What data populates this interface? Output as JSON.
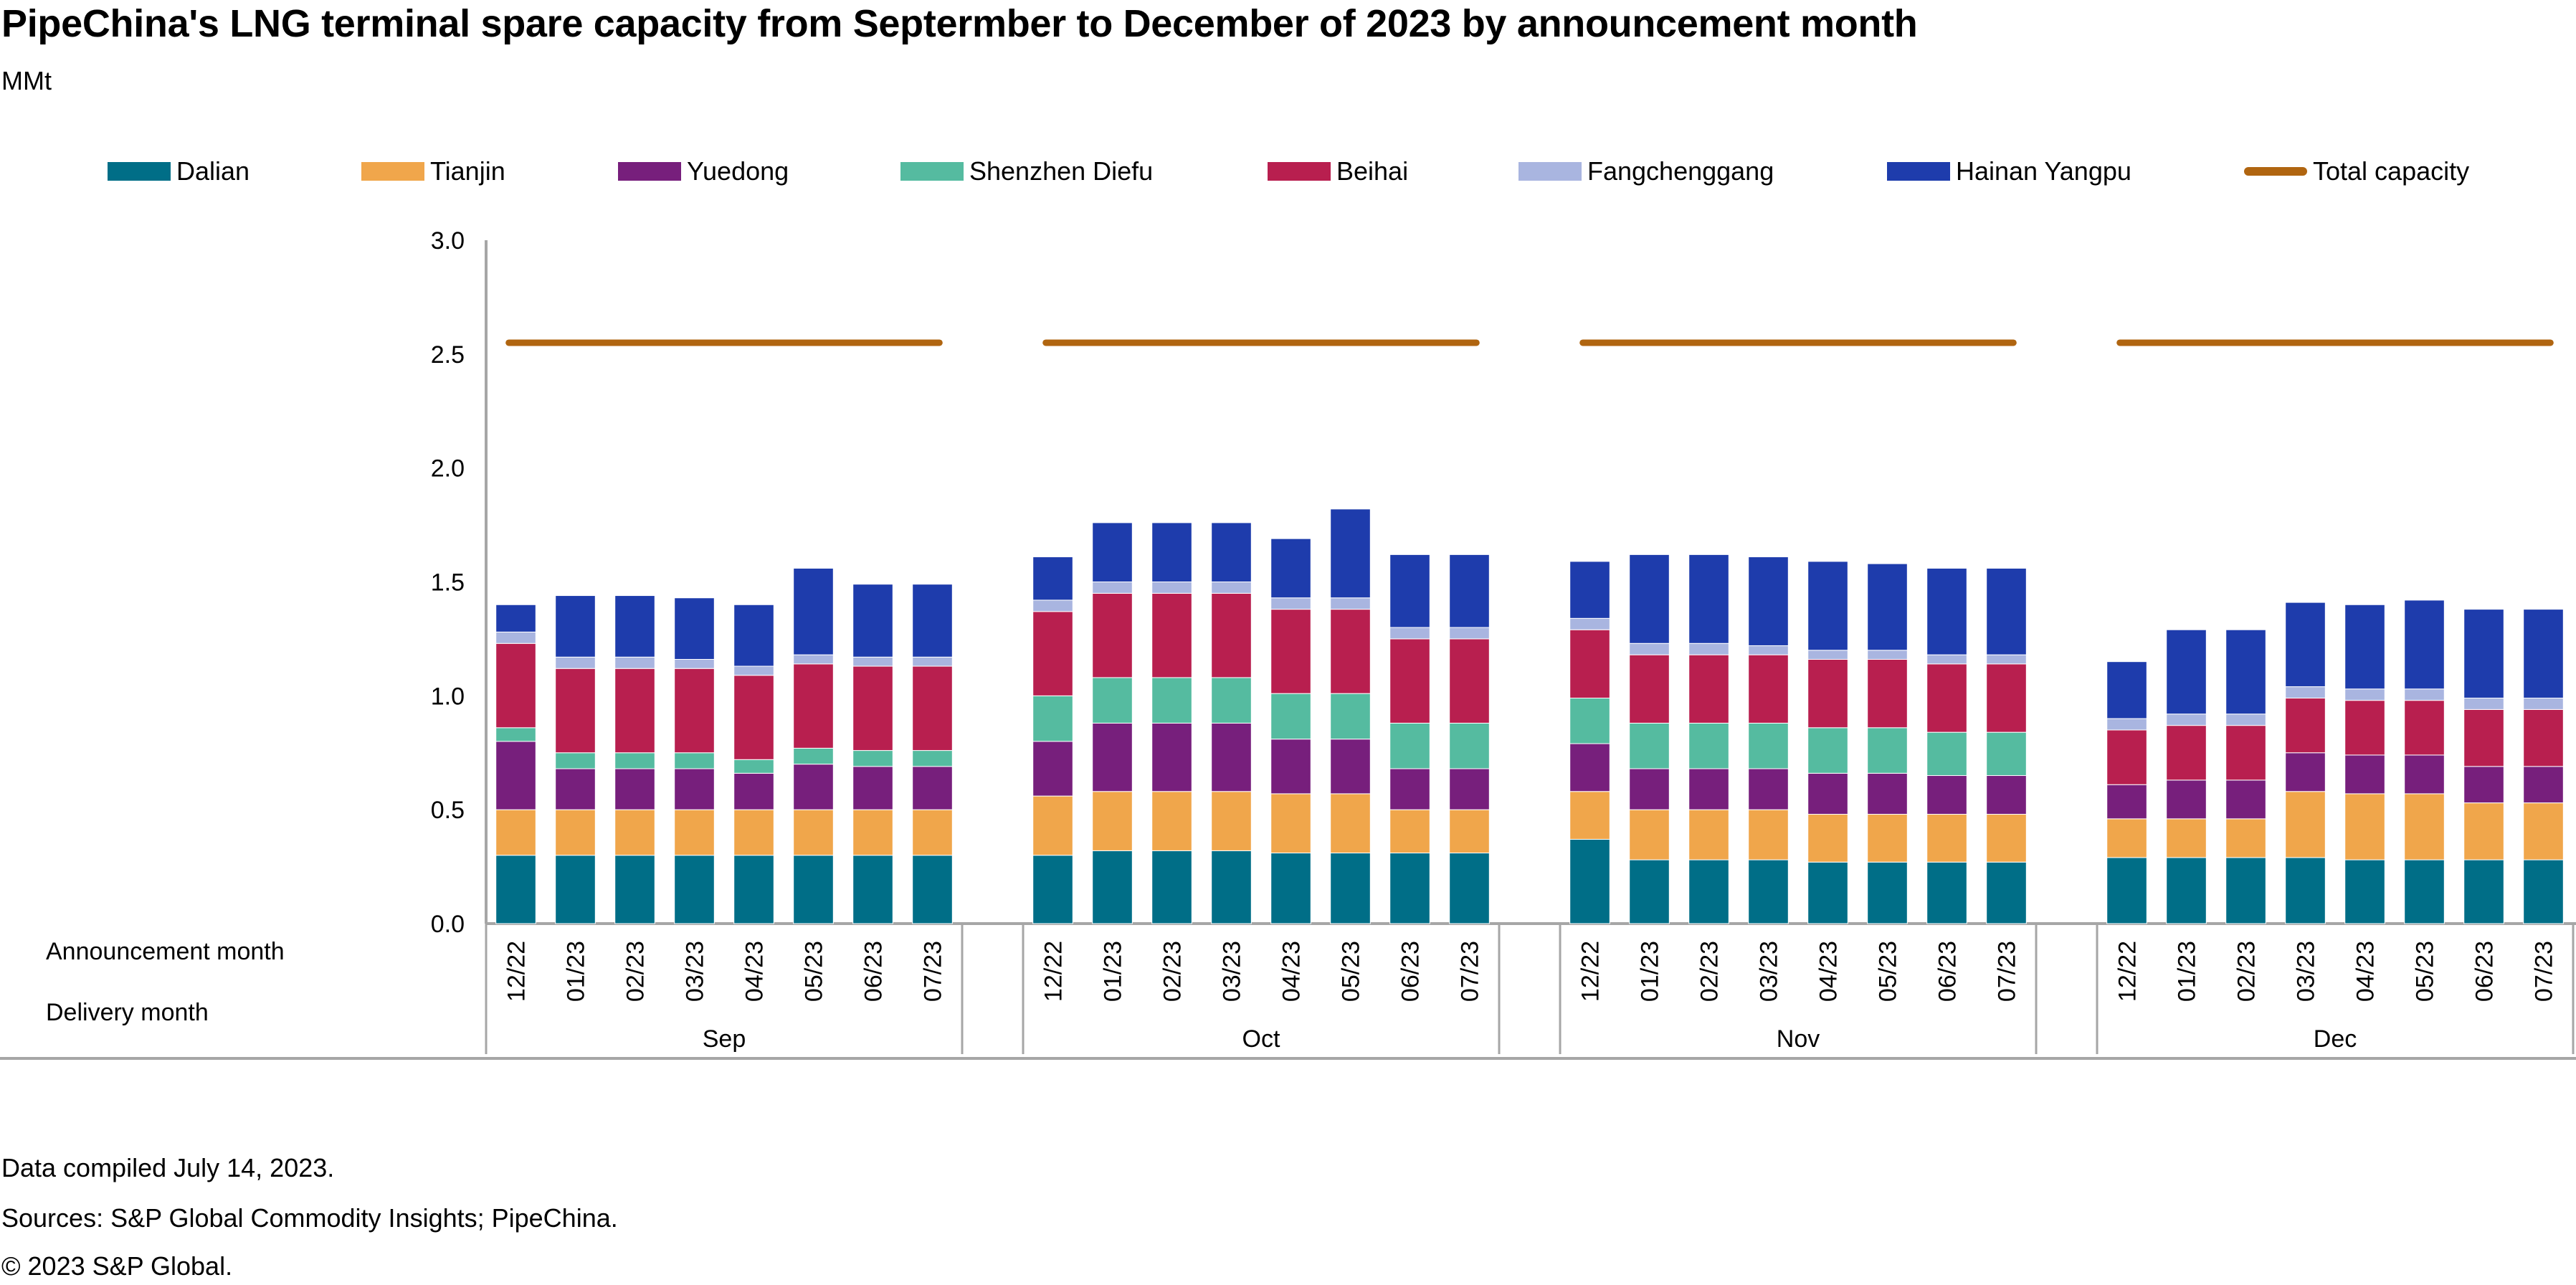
{
  "title": "PipeChina's LNG terminal spare capacity from Septermber to December of 2023 by announcement month",
  "unit": "MMt",
  "row_labels": {
    "announcement": "Announcement month",
    "delivery": "Delivery month"
  },
  "footer": {
    "compiled": "Data compiled July 14, 2023.",
    "sources": "Sources: S&P Global Commodity Insights; PipeChina.",
    "copyright": "© 2023 S&P Global."
  },
  "chart_data": {
    "type": "bar",
    "stacked": true,
    "title": "PipeChina's LNG terminal spare capacity from Septermber to December of 2023 by announcement month",
    "ylabel": "MMt",
    "xlabel": "",
    "ylim": [
      0,
      3.0
    ],
    "yticks": [
      "0.0",
      "0.5",
      "1.0",
      "1.5",
      "2.0",
      "2.5",
      "3.0"
    ],
    "grid": false,
    "legend_position": "top",
    "x_level1_label": "Announcement month",
    "x_level2_label": "Delivery month",
    "groups": [
      "Sep",
      "Oct",
      "Nov",
      "Dec"
    ],
    "categories": [
      "12/22",
      "01/23",
      "02/23",
      "03/23",
      "04/23",
      "05/23",
      "06/23",
      "07/23"
    ],
    "series": [
      {
        "name": "Dalian",
        "color": "#006E87",
        "values": [
          [
            0.3,
            0.3,
            0.3,
            0.3,
            0.3,
            0.3,
            0.3,
            0.3
          ],
          [
            0.3,
            0.32,
            0.32,
            0.32,
            0.31,
            0.31,
            0.31,
            0.31
          ],
          [
            0.37,
            0.28,
            0.28,
            0.28,
            0.27,
            0.27,
            0.27,
            0.27
          ],
          [
            0.29,
            0.29,
            0.29,
            0.29,
            0.28,
            0.28,
            0.28,
            0.28
          ]
        ]
      },
      {
        "name": "Tianjin",
        "color": "#F0A64B",
        "values": [
          [
            0.2,
            0.2,
            0.2,
            0.2,
            0.2,
            0.2,
            0.2,
            0.2
          ],
          [
            0.26,
            0.26,
            0.26,
            0.26,
            0.26,
            0.26,
            0.19,
            0.19
          ],
          [
            0.21,
            0.22,
            0.22,
            0.22,
            0.21,
            0.21,
            0.21,
            0.21
          ],
          [
            0.17,
            0.17,
            0.17,
            0.29,
            0.29,
            0.29,
            0.25,
            0.25
          ]
        ]
      },
      {
        "name": "Yuedong",
        "color": "#771F7C",
        "values": [
          [
            0.3,
            0.18,
            0.18,
            0.18,
            0.16,
            0.2,
            0.19,
            0.19
          ],
          [
            0.24,
            0.3,
            0.3,
            0.3,
            0.24,
            0.24,
            0.18,
            0.18
          ],
          [
            0.21,
            0.18,
            0.18,
            0.18,
            0.18,
            0.18,
            0.17,
            0.17
          ],
          [
            0.15,
            0.17,
            0.17,
            0.17,
            0.17,
            0.17,
            0.16,
            0.16
          ]
        ]
      },
      {
        "name": "Shenzhen Diefu",
        "color": "#55BBA0",
        "values": [
          [
            0.06,
            0.07,
            0.07,
            0.07,
            0.06,
            0.07,
            0.07,
            0.07
          ],
          [
            0.2,
            0.2,
            0.2,
            0.2,
            0.2,
            0.2,
            0.2,
            0.2
          ],
          [
            0.2,
            0.2,
            0.2,
            0.2,
            0.2,
            0.2,
            0.19,
            0.19
          ],
          [
            0,
            0,
            0,
            0,
            0,
            0,
            0,
            0
          ]
        ]
      },
      {
        "name": "Beihai",
        "color": "#B81F4F",
        "values": [
          [
            0.37,
            0.37,
            0.37,
            0.37,
            0.37,
            0.37,
            0.37,
            0.37
          ],
          [
            0.37,
            0.37,
            0.37,
            0.37,
            0.37,
            0.37,
            0.37,
            0.37
          ],
          [
            0.3,
            0.3,
            0.3,
            0.3,
            0.3,
            0.3,
            0.3,
            0.3
          ],
          [
            0.24,
            0.24,
            0.24,
            0.24,
            0.24,
            0.24,
            0.25,
            0.25
          ]
        ]
      },
      {
        "name": "Fangchenggang",
        "color": "#A9B5E0",
        "values": [
          [
            0.05,
            0.05,
            0.05,
            0.04,
            0.04,
            0.04,
            0.04,
            0.04
          ],
          [
            0.05,
            0.05,
            0.05,
            0.05,
            0.05,
            0.05,
            0.05,
            0.05
          ],
          [
            0.05,
            0.05,
            0.05,
            0.04,
            0.04,
            0.04,
            0.04,
            0.04
          ],
          [
            0.05,
            0.05,
            0.05,
            0.05,
            0.05,
            0.05,
            0.05,
            0.05
          ]
        ]
      },
      {
        "name": "Hainan Yangpu",
        "color": "#1E3CAC",
        "values": [
          [
            0.12,
            0.27,
            0.27,
            0.27,
            0.27,
            0.38,
            0.32,
            0.32
          ],
          [
            0.19,
            0.26,
            0.26,
            0.26,
            0.26,
            0.39,
            0.32,
            0.32
          ],
          [
            0.25,
            0.39,
            0.39,
            0.39,
            0.39,
            0.38,
            0.38,
            0.38
          ],
          [
            0.25,
            0.37,
            0.37,
            0.37,
            0.37,
            0.39,
            0.39,
            0.39
          ]
        ]
      }
    ],
    "totals": [
      [
        1.4,
        1.44,
        1.44,
        1.43,
        1.4,
        1.55,
        1.48,
        1.48
      ],
      [
        1.6,
        1.76,
        1.76,
        1.76,
        1.69,
        1.82,
        1.62,
        1.62
      ],
      [
        1.58,
        1.6,
        1.6,
        1.59,
        1.58,
        1.58,
        1.56,
        1.56
      ],
      [
        1.16,
        1.29,
        1.29,
        1.41,
        1.4,
        1.42,
        1.37,
        1.37
      ]
    ],
    "line": {
      "name": "Total capacity",
      "color": "#B06510",
      "values": [
        2.55,
        2.55,
        2.55,
        2.55
      ]
    }
  }
}
